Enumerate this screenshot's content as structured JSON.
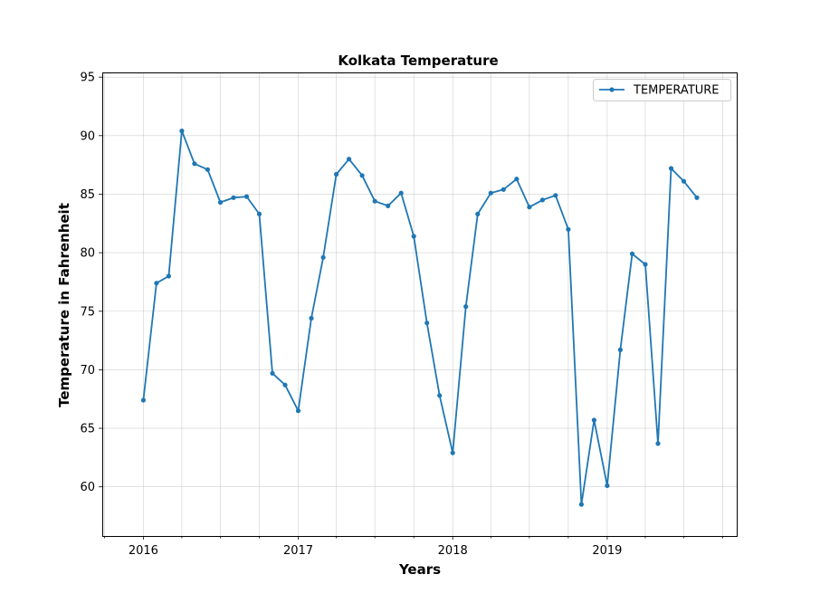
{
  "chart_data": {
    "type": "line",
    "title": "Kolkata Temperature",
    "xlabel": "Years",
    "ylabel": "Temperature in Fahrenheit",
    "grid": true,
    "legend_position": "top-right",
    "xlim": [
      "2015-09-26",
      "2019-11-03"
    ],
    "ylim": [
      55.8,
      95.4
    ],
    "x_ticks": [
      "2016",
      "2017",
      "2018",
      "2019"
    ],
    "y_ticks": [
      60,
      65,
      70,
      75,
      80,
      85,
      90,
      95
    ],
    "series": [
      {
        "name": "TEMPERATURE",
        "color": "#1f77b4",
        "marker": "circle",
        "x": [
          "2016-01-01",
          "2016-02-01",
          "2016-03-01",
          "2016-04-01",
          "2016-05-01",
          "2016-06-01",
          "2016-07-01",
          "2016-08-01",
          "2016-09-01",
          "2016-10-01",
          "2016-11-01",
          "2016-12-01",
          "2017-01-01",
          "2017-02-01",
          "2017-03-01",
          "2017-04-01",
          "2017-05-01",
          "2017-06-01",
          "2017-07-01",
          "2017-08-01",
          "2017-09-01",
          "2017-10-01",
          "2017-11-01",
          "2017-12-01",
          "2018-01-01",
          "2018-02-01",
          "2018-03-01",
          "2018-04-01",
          "2018-05-01",
          "2018-06-01",
          "2018-07-01",
          "2018-08-01",
          "2018-09-01",
          "2018-10-01",
          "2018-11-01",
          "2018-12-01",
          "2019-01-01",
          "2019-02-01",
          "2019-03-01",
          "2019-04-01",
          "2019-05-01",
          "2019-06-01",
          "2019-07-01",
          "2019-08-01"
        ],
        "values": [
          67.4,
          77.4,
          78.0,
          90.4,
          87.6,
          87.1,
          84.3,
          84.7,
          84.8,
          83.3,
          69.7,
          68.7,
          66.5,
          74.4,
          79.6,
          86.7,
          88.0,
          86.6,
          84.4,
          84.0,
          85.1,
          81.4,
          74.0,
          67.8,
          62.9,
          75.4,
          83.3,
          85.1,
          85.4,
          86.3,
          83.9,
          84.5,
          84.9,
          82.0,
          58.5,
          65.7,
          60.1,
          71.7,
          79.9,
          79.0,
          63.7,
          87.2,
          86.1,
          84.7
        ]
      }
    ]
  }
}
